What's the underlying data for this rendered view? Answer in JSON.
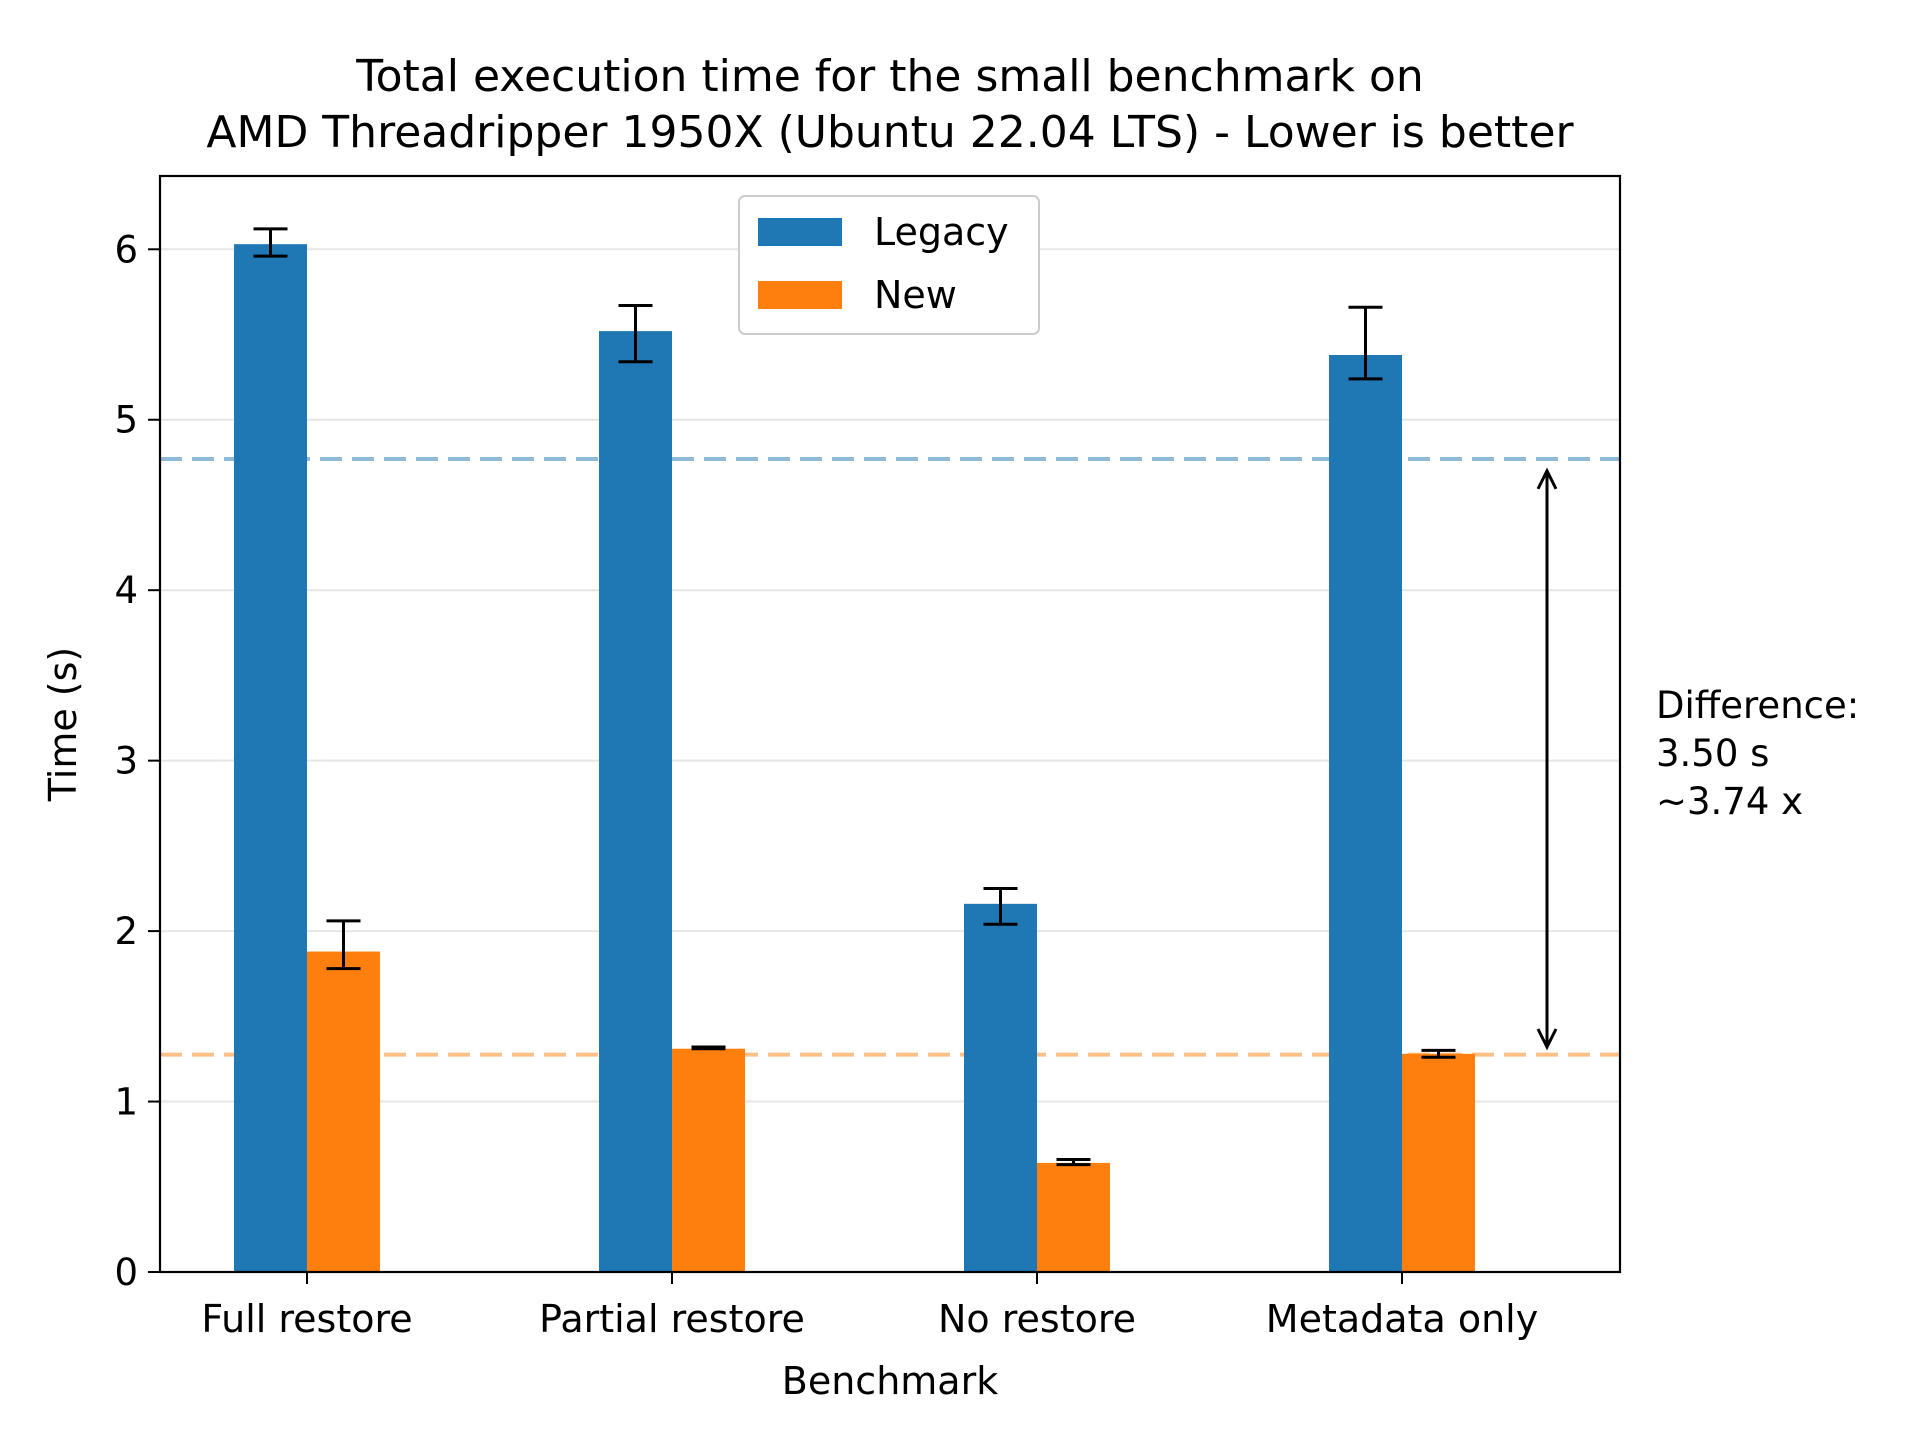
{
  "chart_data": {
    "type": "bar",
    "title": "Total execution time for the small benchmark on",
    "subtitle": "AMD Threadripper 1950X (Ubuntu 22.04 LTS) - Lower is better",
    "xlabel": "Benchmark",
    "ylabel": "Time (s)",
    "ylim": [
      0,
      6.43
    ],
    "yticks": [
      "0",
      "1",
      "2",
      "3",
      "4",
      "5",
      "6"
    ],
    "grid": "horizontal",
    "legend_position": "upper-center",
    "categories": [
      "Full restore",
      "Partial restore",
      "No restore",
      "Metadata only"
    ],
    "series": [
      {
        "name": "Legacy",
        "color": "#1f77b4",
        "values": [
          6.03,
          5.52,
          2.16,
          5.38
        ],
        "err_low": [
          5.96,
          5.34,
          2.04,
          5.24
        ],
        "err_high": [
          6.12,
          5.67,
          2.25,
          5.66
        ]
      },
      {
        "name": "New",
        "color": "#ff7f0e",
        "values": [
          1.88,
          1.31,
          0.64,
          1.28
        ],
        "err_low": [
          1.78,
          1.31,
          0.63,
          1.26
        ],
        "err_high": [
          2.06,
          1.32,
          0.66,
          1.3
        ]
      }
    ],
    "reference_lines": [
      {
        "value": 4.77,
        "color": "#8fbbd9"
      },
      {
        "value": 1.275,
        "color": "#ffbf86"
      }
    ],
    "annotation": {
      "lines": [
        "Difference:",
        "3.50 s",
        "~3.74 x"
      ],
      "arrow_from": 1.32,
      "arrow_to": 4.7
    }
  }
}
